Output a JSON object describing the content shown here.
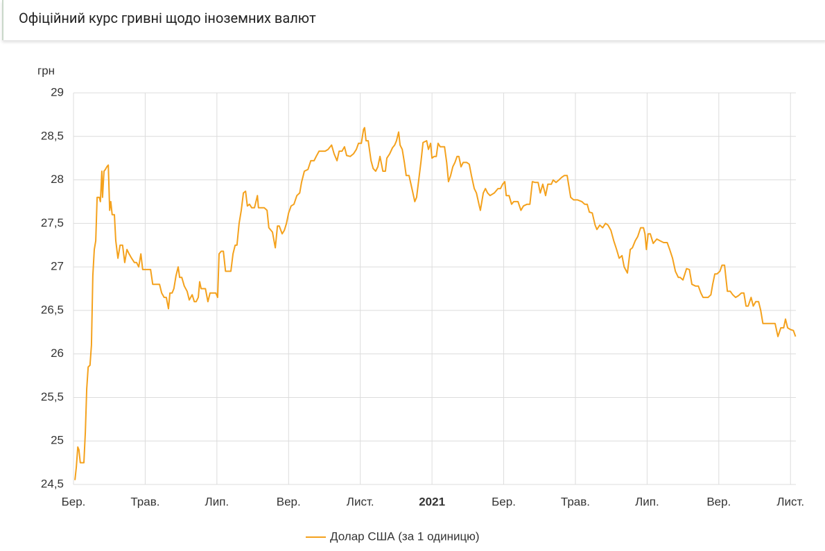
{
  "header": {
    "title": "Офіційний курс гривні щодо іноземних валют"
  },
  "chart_data": {
    "type": "line",
    "y_label": "грн",
    "grid": true,
    "legend": "bottom",
    "xlim": [
      0,
      20.15
    ],
    "ylim": [
      24.5,
      29
    ],
    "yticks": [
      {
        "value": 24.5,
        "label": "24,5"
      },
      25,
      {
        "value": 25.5,
        "label": "25,5"
      },
      26,
      {
        "value": 26.5,
        "label": "26,5"
      },
      27,
      {
        "value": 27.5,
        "label": "27,5"
      },
      28,
      {
        "value": 28.5,
        "label": "28,5"
      },
      29
    ],
    "xticks": [
      {
        "value": 0,
        "label": "Бер."
      },
      {
        "value": 2,
        "label": "Трав."
      },
      {
        "value": 4,
        "label": "Лип."
      },
      {
        "value": 6,
        "label": "Вер."
      },
      {
        "value": 8,
        "label": "Лист."
      },
      {
        "value": 10,
        "label": "2021",
        "bold": true
      },
      {
        "value": 12,
        "label": "Бер."
      },
      {
        "value": 14,
        "label": "Трав."
      },
      {
        "value": 16,
        "label": "Лип."
      },
      {
        "value": 18,
        "label": "Вер."
      },
      {
        "value": 20,
        "label": "Лист."
      }
    ],
    "x": [
      0.04,
      0.08,
      0.12,
      0.15,
      0.19,
      0.29,
      0.33,
      0.37,
      0.41,
      0.46,
      0.5,
      0.54,
      0.58,
      0.62,
      0.66,
      0.72,
      0.75,
      0.79,
      0.81,
      0.85,
      0.89,
      0.93,
      0.97,
      1.01,
      1.04,
      1.08,
      1.14,
      1.18,
      1.24,
      1.3,
      1.37,
      1.43,
      1.49,
      1.55,
      1.62,
      1.7,
      1.76,
      1.82,
      1.88,
      1.93,
      2.05,
      2.15,
      2.21,
      2.32,
      2.4,
      2.46,
      2.53,
      2.59,
      2.65,
      2.69,
      2.75,
      2.8,
      2.86,
      2.92,
      2.96,
      3.02,
      3.09,
      3.17,
      3.23,
      3.31,
      3.37,
      3.42,
      3.48,
      3.52,
      3.56,
      3.68,
      3.75,
      3.81,
      3.89,
      3.97,
      4.02,
      4.06,
      4.12,
      4.18,
      4.24,
      4.33,
      4.39,
      4.45,
      4.51,
      4.56,
      4.62,
      4.68,
      4.74,
      4.8,
      4.85,
      4.91,
      4.97,
      5.05,
      5.13,
      5.16,
      5.24,
      5.32,
      5.4,
      5.45,
      5.55,
      5.63,
      5.69,
      5.74,
      5.82,
      5.88,
      5.94,
      6.0,
      6.07,
      6.15,
      6.23,
      6.31,
      6.36,
      6.44,
      6.54,
      6.62,
      6.71,
      6.77,
      6.85,
      6.92,
      7.02,
      7.1,
      7.2,
      7.27,
      7.35,
      7.41,
      7.49,
      7.56,
      7.62,
      7.72,
      7.81,
      7.89,
      7.95,
      8.03,
      8.09,
      8.12,
      8.16,
      8.22,
      8.3,
      8.36,
      8.43,
      8.49,
      8.55,
      8.63,
      8.7,
      8.74,
      8.82,
      8.9,
      8.96,
      9.01,
      9.07,
      9.11,
      9.17,
      9.23,
      9.28,
      9.36,
      9.44,
      9.52,
      9.57,
      9.63,
      9.69,
      9.75,
      9.85,
      9.9,
      9.96,
      10.0,
      10.06,
      10.12,
      10.17,
      10.23,
      10.29,
      10.35,
      10.41,
      10.46,
      10.52,
      10.58,
      10.64,
      10.7,
      10.75,
      10.81,
      10.87,
      10.97,
      11.04,
      11.1,
      11.18,
      11.24,
      11.32,
      11.35,
      11.43,
      11.49,
      11.55,
      11.62,
      11.74,
      11.84,
      11.91,
      11.97,
      12.03,
      12.07,
      12.15,
      12.22,
      12.28,
      12.4,
      12.48,
      12.55,
      12.65,
      12.73,
      12.8,
      12.88,
      12.96,
      13.02,
      13.09,
      13.17,
      13.23,
      13.33,
      13.38,
      13.46,
      13.54,
      13.62,
      13.69,
      13.77,
      13.81,
      13.87,
      13.95,
      14.06,
      14.18,
      14.26,
      14.33,
      14.39,
      14.47,
      14.55,
      14.6,
      14.68,
      14.76,
      14.84,
      14.91,
      14.99,
      15.07,
      15.15,
      15.22,
      15.3,
      15.36,
      15.45,
      15.53,
      15.59,
      15.67,
      15.74,
      15.82,
      15.9,
      15.94,
      15.98,
      16.03,
      16.09,
      16.17,
      16.27,
      16.36,
      16.46,
      16.56,
      16.63,
      16.71,
      16.79,
      16.87,
      16.92,
      17.0,
      17.1,
      17.18,
      17.25,
      17.35,
      17.43,
      17.5,
      17.56,
      17.62,
      17.7,
      17.78,
      17.83,
      17.89,
      17.95,
      18.03,
      18.09,
      18.16,
      18.24,
      18.32,
      18.39,
      18.47,
      18.55,
      18.63,
      18.7,
      18.76,
      18.82,
      18.9,
      18.96,
      19.03,
      19.11,
      19.17,
      19.23,
      19.3,
      19.38,
      19.48,
      19.57,
      19.65,
      19.73,
      19.81,
      19.86,
      19.92,
      20.0,
      20.08,
      20.14
    ],
    "series": [
      {
        "name": "Долар США (за 1 одиницю)",
        "color": "#f4a11c",
        "values": [
          24.55,
          24.7,
          24.93,
          24.9,
          24.75,
          24.75,
          25.1,
          25.6,
          25.85,
          25.87,
          26.1,
          26.9,
          27.2,
          27.3,
          27.8,
          27.8,
          27.75,
          28.1,
          27.8,
          28.1,
          28.12,
          28.15,
          28.17,
          27.65,
          27.75,
          27.6,
          27.6,
          27.3,
          27.1,
          27.25,
          27.25,
          27.05,
          27.2,
          27.15,
          27.1,
          27.05,
          27.05,
          27.0,
          27.15,
          26.97,
          26.97,
          26.97,
          26.8,
          26.8,
          26.8,
          26.7,
          26.65,
          26.65,
          26.52,
          26.7,
          26.7,
          26.75,
          26.9,
          27.0,
          26.88,
          26.88,
          26.78,
          26.72,
          26.62,
          26.68,
          26.6,
          26.6,
          26.65,
          26.83,
          26.75,
          26.75,
          26.6,
          26.7,
          26.7,
          26.7,
          26.65,
          27.15,
          27.18,
          27.18,
          26.95,
          26.95,
          26.95,
          27.15,
          27.25,
          27.25,
          27.5,
          27.65,
          27.85,
          27.87,
          27.7,
          27.72,
          27.68,
          27.68,
          27.82,
          27.68,
          27.68,
          27.68,
          27.65,
          27.45,
          27.4,
          27.22,
          27.47,
          27.47,
          27.38,
          27.42,
          27.5,
          27.62,
          27.7,
          27.72,
          27.82,
          27.85,
          27.97,
          28.1,
          28.12,
          28.22,
          28.22,
          28.27,
          28.33,
          28.33,
          28.33,
          28.35,
          28.4,
          28.3,
          28.22,
          28.33,
          28.33,
          28.38,
          28.28,
          28.27,
          28.3,
          28.35,
          28.42,
          28.42,
          28.58,
          28.6,
          28.45,
          28.45,
          28.22,
          28.13,
          28.1,
          28.15,
          28.27,
          28.1,
          28.1,
          28.25,
          28.3,
          28.37,
          28.4,
          28.45,
          28.55,
          28.4,
          28.35,
          28.2,
          28.05,
          28.05,
          27.9,
          27.75,
          27.8,
          28.0,
          28.2,
          28.43,
          28.45,
          28.35,
          28.42,
          28.25,
          28.27,
          28.27,
          28.42,
          28.38,
          28.38,
          28.38,
          28.2,
          27.98,
          28.05,
          28.15,
          28.2,
          28.27,
          28.27,
          28.15,
          28.2,
          28.2,
          28.18,
          28.05,
          27.9,
          27.85,
          27.7,
          27.65,
          27.85,
          27.9,
          27.85,
          27.82,
          27.85,
          27.9,
          27.9,
          27.95,
          27.98,
          27.82,
          27.82,
          27.72,
          27.75,
          27.75,
          27.65,
          27.7,
          27.72,
          27.72,
          27.98,
          27.97,
          27.97,
          27.85,
          27.95,
          27.82,
          27.95,
          27.95,
          28.0,
          27.97,
          28.0,
          28.03,
          28.05,
          28.05,
          27.95,
          27.8,
          27.77,
          27.77,
          27.75,
          27.72,
          27.72,
          27.63,
          27.62,
          27.48,
          27.43,
          27.48,
          27.45,
          27.5,
          27.48,
          27.42,
          27.3,
          27.2,
          27.1,
          27.13,
          27.0,
          26.93,
          27.2,
          27.22,
          27.3,
          27.35,
          27.45,
          27.45,
          27.38,
          27.2,
          27.38,
          27.38,
          27.27,
          27.32,
          27.3,
          27.28,
          27.28,
          27.2,
          27.1,
          26.95,
          26.88,
          26.88,
          26.85,
          26.98,
          26.97,
          26.8,
          26.78,
          26.78,
          26.7,
          26.65,
          26.65,
          26.65,
          26.68,
          26.8,
          26.92,
          26.92,
          26.95,
          27.02,
          27.02,
          26.72,
          26.72,
          26.68,
          26.65,
          26.67,
          26.7,
          26.7,
          26.55,
          26.55,
          26.65,
          26.55,
          26.6,
          26.6,
          26.5,
          26.35,
          26.35,
          26.35,
          26.35,
          26.35,
          26.2,
          26.3,
          26.3,
          26.4,
          26.3,
          26.28,
          26.27,
          26.2
        ]
      }
    ]
  }
}
